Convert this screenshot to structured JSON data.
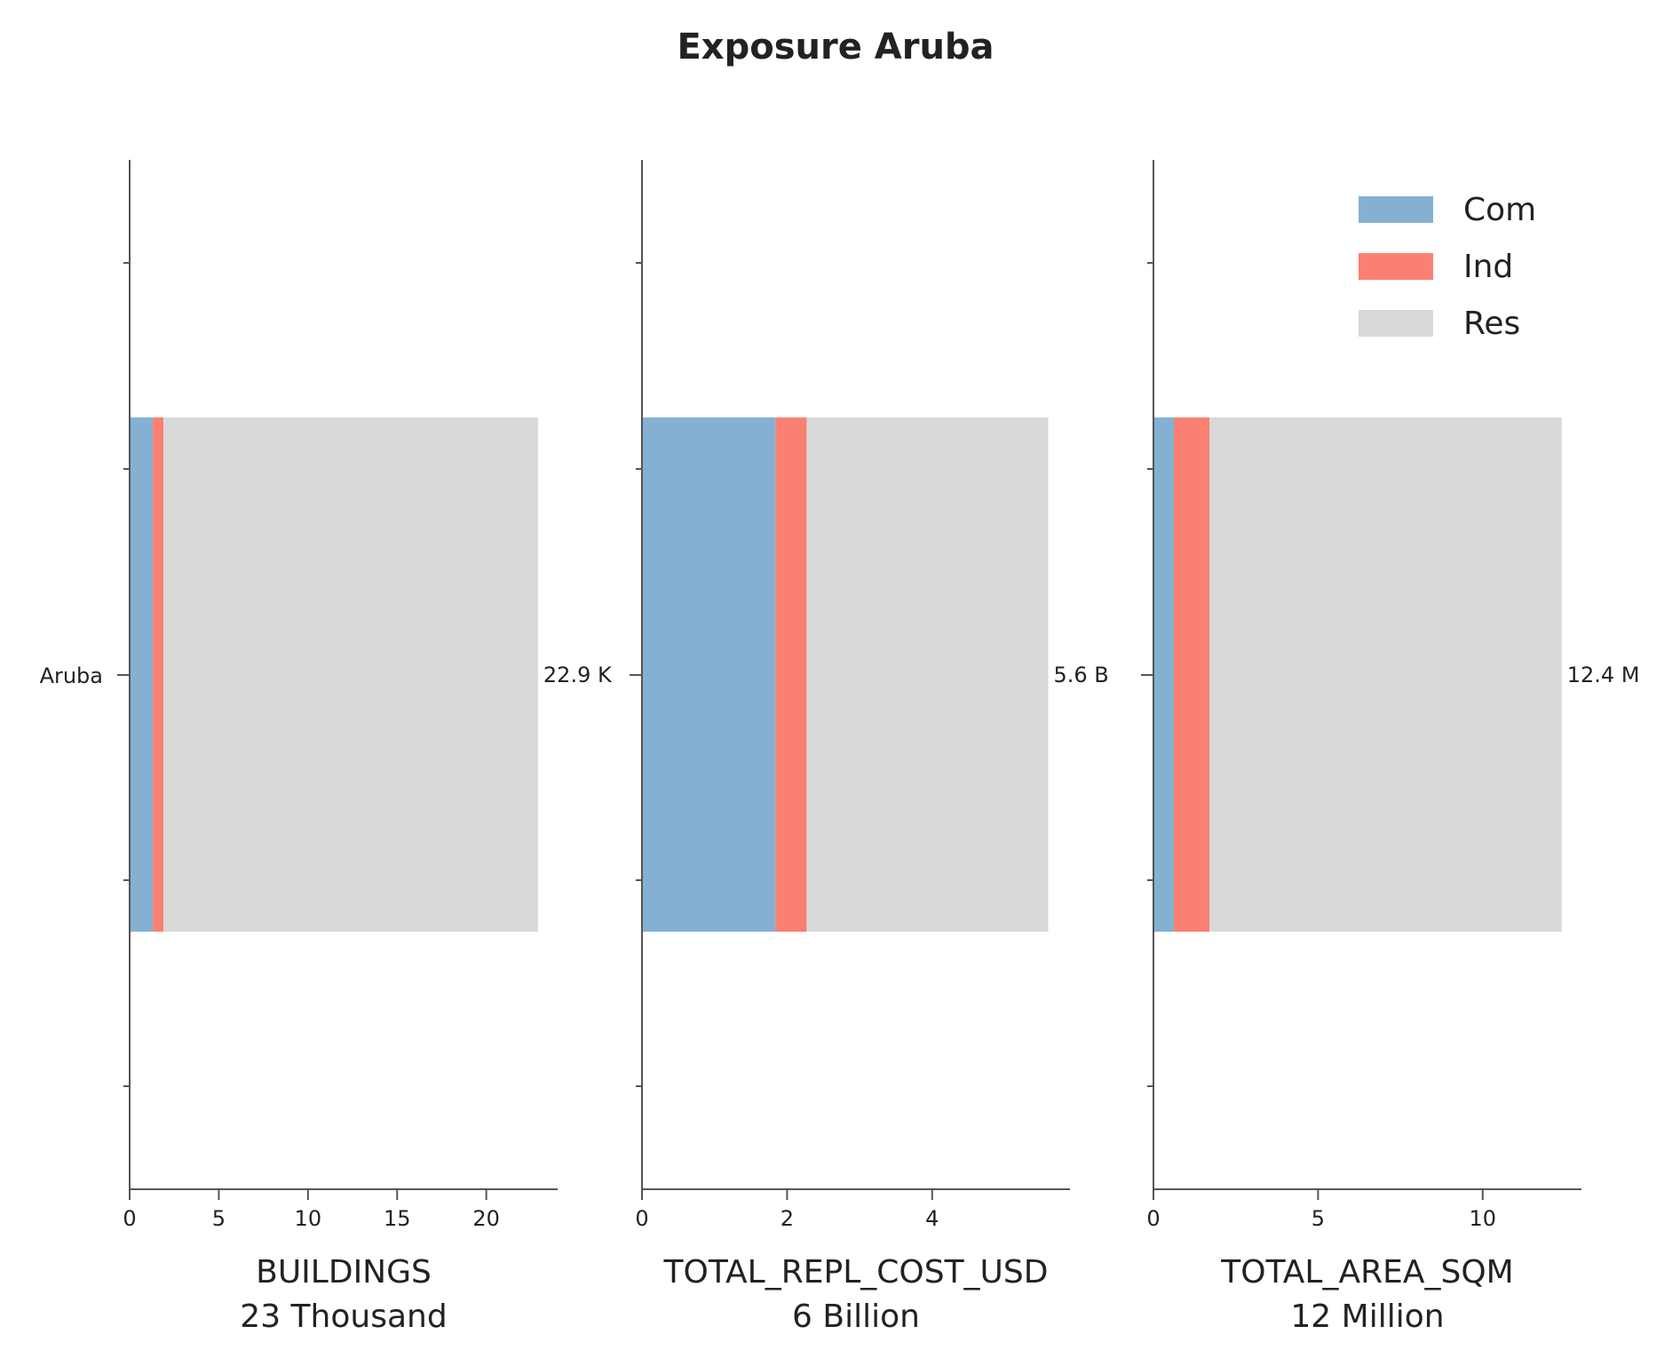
{
  "chart_data": {
    "type": "bar",
    "orientation": "horizontal",
    "stacked": true,
    "title": "Exposure Aruba",
    "category_label": "Aruba",
    "legend": {
      "placement": "top-right",
      "entries": [
        {
          "name": "Com",
          "color": "#84b1d3"
        },
        {
          "name": "Ind",
          "color": "#fa8072"
        },
        {
          "name": "Res",
          "color": "#d9d9d9"
        }
      ]
    },
    "grid": false,
    "panels": [
      {
        "xlabel": "BUILDINGS",
        "sublabel": "23 Thousand",
        "unit_note": "thousands",
        "xlim": [
          0,
          24
        ],
        "xticks": [
          0,
          5,
          10,
          15,
          20
        ],
        "series": [
          {
            "name": "Com",
            "value": 1.3
          },
          {
            "name": "Ind",
            "value": 0.6
          },
          {
            "name": "Res",
            "value": 21.0
          }
        ],
        "total_label": "22.9 K"
      },
      {
        "xlabel": "TOTAL_REPL_COST_USD",
        "sublabel": "6 Billion",
        "unit_note": "billions",
        "xlim": [
          0,
          5.9
        ],
        "xticks": [
          0,
          2,
          4
        ],
        "series": [
          {
            "name": "Com",
            "value": 1.84
          },
          {
            "name": "Ind",
            "value": 0.43
          },
          {
            "name": "Res",
            "value": 3.33
          }
        ],
        "total_label": "5.6 B"
      },
      {
        "xlabel": "TOTAL_AREA_SQM",
        "sublabel": "12 Million",
        "unit_note": "millions",
        "xlim": [
          0,
          13.0
        ],
        "xticks": [
          0,
          5,
          10
        ],
        "series": [
          {
            "name": "Com",
            "value": 0.62
          },
          {
            "name": "Ind",
            "value": 1.08
          },
          {
            "name": "Res",
            "value": 10.7
          }
        ],
        "total_label": "12.4 M"
      }
    ]
  }
}
